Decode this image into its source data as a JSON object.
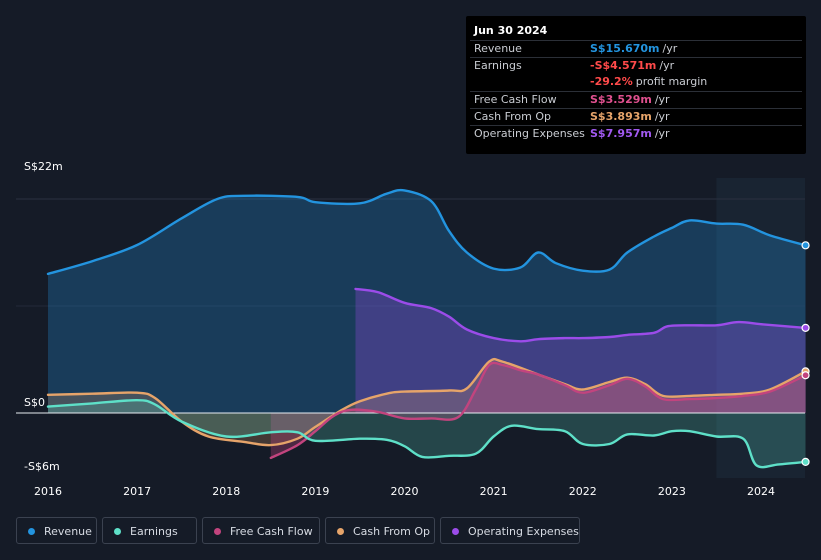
{
  "tooltip": {
    "date": "Jun 30 2024",
    "rows": {
      "revenue": {
        "label": "Revenue",
        "value": "S$15.670m",
        "unit": "/yr"
      },
      "earnings": {
        "label": "Earnings",
        "value": "-S$4.571m",
        "unit": "/yr"
      },
      "margin": {
        "value": "-29.2%",
        "unit": "profit margin"
      },
      "fcf": {
        "label": "Free Cash Flow",
        "value": "S$3.529m",
        "unit": "/yr"
      },
      "cfo": {
        "label": "Cash From Op",
        "value": "S$3.893m",
        "unit": "/yr"
      },
      "opex": {
        "label": "Operating Expenses",
        "value": "S$7.957m",
        "unit": "/yr"
      }
    }
  },
  "legend": {
    "revenue": "Revenue",
    "earnings": "Earnings",
    "fcf": "Free Cash Flow",
    "cfo": "Cash From Op",
    "opex": "Operating Expenses"
  },
  "colors": {
    "revenue": "#2394df",
    "earnings": "#5ee0c8",
    "fcf": "#c2447e",
    "cfo": "#e6a46a",
    "opex": "#9b4ce9"
  },
  "chart_data": {
    "type": "area",
    "title": "",
    "units": "S$ millions",
    "y_label_top": "S$22m",
    "y_label_zero": "S$0",
    "y_label_bottom": "-S$6m",
    "ylim": [
      -6,
      22
    ],
    "xlim": [
      2015.9,
      2024.5
    ],
    "forecast_region_start": 2023.5,
    "x_ticks": [
      "2016",
      "2017",
      "2018",
      "2019",
      "2020",
      "2021",
      "2022",
      "2023",
      "2024"
    ],
    "series": [
      {
        "name": "Revenue",
        "key": "revenue",
        "points": [
          [
            2016.0,
            13.0
          ],
          [
            2016.5,
            14.2
          ],
          [
            2017.0,
            15.7
          ],
          [
            2017.5,
            18.2
          ],
          [
            2017.9,
            20.0
          ],
          [
            2018.2,
            20.3
          ],
          [
            2018.8,
            20.2
          ],
          [
            2019.0,
            19.7
          ],
          [
            2019.5,
            19.6
          ],
          [
            2019.8,
            20.5
          ],
          [
            2020.0,
            20.8
          ],
          [
            2020.3,
            19.8
          ],
          [
            2020.5,
            17.0
          ],
          [
            2020.7,
            15.0
          ],
          [
            2021.0,
            13.5
          ],
          [
            2021.3,
            13.6
          ],
          [
            2021.5,
            15.0
          ],
          [
            2021.7,
            14.0
          ],
          [
            2022.0,
            13.3
          ],
          [
            2022.3,
            13.4
          ],
          [
            2022.5,
            15.0
          ],
          [
            2022.8,
            16.5
          ],
          [
            2023.0,
            17.3
          ],
          [
            2023.2,
            18.0
          ],
          [
            2023.5,
            17.7
          ],
          [
            2023.8,
            17.6
          ],
          [
            2024.1,
            16.6
          ],
          [
            2024.5,
            15.67
          ]
        ]
      },
      {
        "name": "Earnings",
        "key": "earnings",
        "points": [
          [
            2016.0,
            0.6
          ],
          [
            2016.5,
            0.9
          ],
          [
            2017.0,
            1.2
          ],
          [
            2017.2,
            0.8
          ],
          [
            2017.5,
            -0.8
          ],
          [
            2018.0,
            -2.2
          ],
          [
            2018.5,
            -1.8
          ],
          [
            2018.8,
            -1.8
          ],
          [
            2019.0,
            -2.6
          ],
          [
            2019.5,
            -2.4
          ],
          [
            2019.8,
            -2.5
          ],
          [
            2020.0,
            -3.1
          ],
          [
            2020.2,
            -4.1
          ],
          [
            2020.5,
            -4.0
          ],
          [
            2020.8,
            -3.8
          ],
          [
            2021.0,
            -2.2
          ],
          [
            2021.2,
            -1.2
          ],
          [
            2021.5,
            -1.5
          ],
          [
            2021.8,
            -1.7
          ],
          [
            2022.0,
            -2.9
          ],
          [
            2022.3,
            -2.9
          ],
          [
            2022.5,
            -2.0
          ],
          [
            2022.8,
            -2.1
          ],
          [
            2023.0,
            -1.7
          ],
          [
            2023.2,
            -1.7
          ],
          [
            2023.5,
            -2.2
          ],
          [
            2023.8,
            -2.4
          ],
          [
            2023.95,
            -4.9
          ],
          [
            2024.2,
            -4.8
          ],
          [
            2024.5,
            -4.571
          ]
        ]
      },
      {
        "name": "Free Cash Flow",
        "key": "fcf",
        "points": [
          [
            2018.5,
            -4.2
          ],
          [
            2018.8,
            -3.0
          ],
          [
            2019.0,
            -1.7
          ],
          [
            2019.2,
            -0.3
          ],
          [
            2019.4,
            0.3
          ],
          [
            2019.7,
            0.1
          ],
          [
            2020.0,
            -0.5
          ],
          [
            2020.3,
            -0.5
          ],
          [
            2020.6,
            -0.4
          ],
          [
            2020.8,
            2.2
          ],
          [
            2020.95,
            4.5
          ],
          [
            2021.1,
            4.5
          ],
          [
            2021.3,
            4.0
          ],
          [
            2021.5,
            3.6
          ],
          [
            2021.8,
            2.6
          ],
          [
            2022.0,
            1.9
          ],
          [
            2022.3,
            2.6
          ],
          [
            2022.5,
            3.2
          ],
          [
            2022.7,
            2.5
          ],
          [
            2022.9,
            1.3
          ],
          [
            2023.2,
            1.3
          ],
          [
            2023.5,
            1.4
          ],
          [
            2023.8,
            1.6
          ],
          [
            2024.1,
            2.0
          ],
          [
            2024.5,
            3.529
          ]
        ]
      },
      {
        "name": "Cash From Op",
        "key": "cfo",
        "points": [
          [
            2016.0,
            1.7
          ],
          [
            2016.5,
            1.8
          ],
          [
            2017.0,
            1.9
          ],
          [
            2017.2,
            1.4
          ],
          [
            2017.5,
            -0.8
          ],
          [
            2017.8,
            -2.2
          ],
          [
            2018.2,
            -2.7
          ],
          [
            2018.5,
            -3.0
          ],
          [
            2018.8,
            -2.4
          ],
          [
            2019.0,
            -1.3
          ],
          [
            2019.3,
            0.3
          ],
          [
            2019.5,
            1.1
          ],
          [
            2019.8,
            1.8
          ],
          [
            2020.0,
            2.0
          ],
          [
            2020.5,
            2.1
          ],
          [
            2020.7,
            2.3
          ],
          [
            2020.95,
            4.8
          ],
          [
            2021.1,
            4.8
          ],
          [
            2021.5,
            3.6
          ],
          [
            2021.8,
            2.7
          ],
          [
            2022.0,
            2.2
          ],
          [
            2022.3,
            2.9
          ],
          [
            2022.5,
            3.3
          ],
          [
            2022.7,
            2.7
          ],
          [
            2022.9,
            1.6
          ],
          [
            2023.2,
            1.6
          ],
          [
            2023.5,
            1.7
          ],
          [
            2023.8,
            1.8
          ],
          [
            2024.1,
            2.2
          ],
          [
            2024.5,
            3.893
          ]
        ]
      },
      {
        "name": "Operating Expenses",
        "key": "opex",
        "points": [
          [
            2019.45,
            11.6
          ],
          [
            2019.7,
            11.3
          ],
          [
            2020.0,
            10.3
          ],
          [
            2020.3,
            9.8
          ],
          [
            2020.5,
            9.0
          ],
          [
            2020.7,
            7.8
          ],
          [
            2021.0,
            7.0
          ],
          [
            2021.3,
            6.7
          ],
          [
            2021.5,
            6.9
          ],
          [
            2021.8,
            7.0
          ],
          [
            2022.0,
            7.0
          ],
          [
            2022.3,
            7.1
          ],
          [
            2022.5,
            7.3
          ],
          [
            2022.8,
            7.5
          ],
          [
            2022.95,
            8.1
          ],
          [
            2023.2,
            8.2
          ],
          [
            2023.5,
            8.2
          ],
          [
            2023.75,
            8.5
          ],
          [
            2024.0,
            8.3
          ],
          [
            2024.5,
            7.957
          ]
        ]
      }
    ]
  }
}
